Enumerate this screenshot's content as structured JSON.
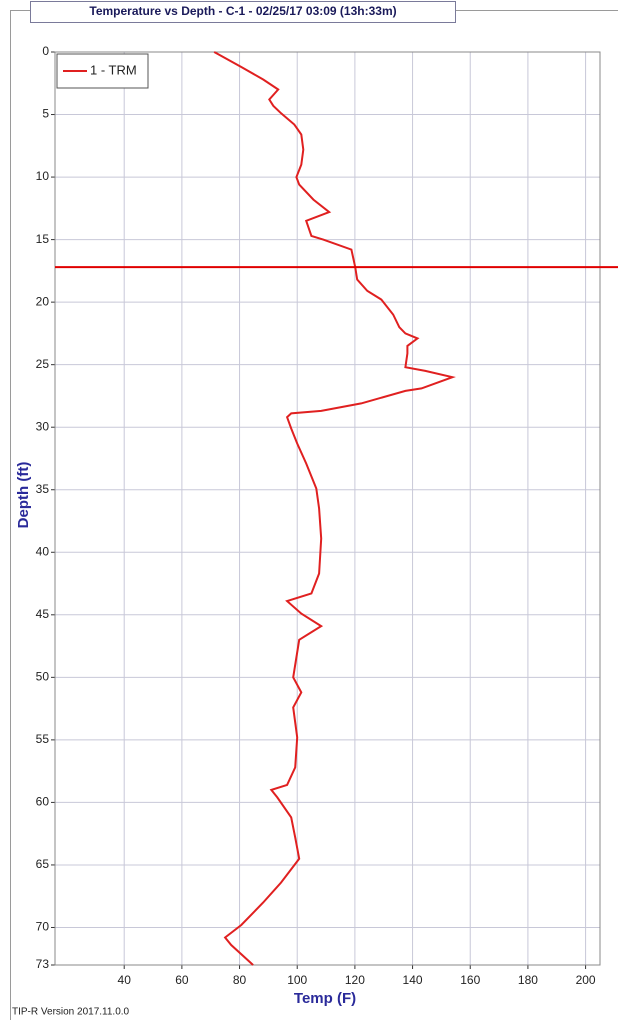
{
  "chart_data": {
    "type": "line",
    "title": "Temperature vs Depth - C-1 - 02/25/17 03:09 (13h:33m)",
    "x_label": "Temp (F)",
    "y_label": "Depth (ft)",
    "footer": "TIP-R Version 2017.11.0.0",
    "xlim": [
      16,
      205
    ],
    "xticks": [
      40,
      60,
      80,
      100,
      120,
      140,
      160,
      180,
      200
    ],
    "ylim": [
      0,
      73
    ],
    "y_inverted": true,
    "yticks": [
      0,
      5,
      10,
      15,
      20,
      25,
      30,
      35,
      40,
      45,
      50,
      55,
      60,
      65,
      70,
      73
    ],
    "grid": true,
    "legend": "top-left",
    "reference_lines": [
      {
        "value": 17.2,
        "color": "#e00000"
      }
    ],
    "series": [
      {
        "name": "1 - TRM",
        "color": "#e02020",
        "x": [
          71.2,
          80.6,
          88.2,
          93.4,
          90.3,
          91.7,
          94.4,
          99.0,
          101.4,
          102.1,
          101.4,
          99.7,
          100.7,
          105.6,
          111.1,
          103.1,
          104.9,
          109.0,
          118.8,
          120.1,
          120.8,
          124.3,
          129.2,
          133.3,
          135.4,
          137.5,
          141.7,
          138.2,
          138.2,
          137.5,
          144.4,
          153.8,
          143.1,
          137.5,
          122.2,
          108.3,
          97.9,
          96.5,
          97.9,
          100,
          103.1,
          106.6,
          107.6,
          108.3,
          107.6,
          104.9,
          96.5,
          101.4,
          108.3,
          100.7,
          100,
          98.6,
          101.4,
          98.6,
          100,
          99.3,
          96.5,
          91.0,
          93.1,
          97.9,
          99.3,
          100.7,
          94.4,
          88.2,
          80.6,
          75.0,
          77.1,
          84.7
        ],
        "values": [
          0,
          1.2,
          2.2,
          3.0,
          3.8,
          4.3,
          4.9,
          5.8,
          6.6,
          7.8,
          9.0,
          10.0,
          10.6,
          11.8,
          12.8,
          13.5,
          14.7,
          15.0,
          15.8,
          17.2,
          18.2,
          19.1,
          19.8,
          21.0,
          22.0,
          22.5,
          22.9,
          23.5,
          24.1,
          25.2,
          25.5,
          26.0,
          26.9,
          27.1,
          28.1,
          28.7,
          28.9,
          29.2,
          30.1,
          31.3,
          32.9,
          34.9,
          36.5,
          38.9,
          41.7,
          43.3,
          43.9,
          44.9,
          45.9,
          47.0,
          48.0,
          50.0,
          51.2,
          52.4,
          54.8,
          57.2,
          58.6,
          59.0,
          59.6,
          61.2,
          62.8,
          64.5,
          66.4,
          68.0,
          69.8,
          70.8,
          71.4,
          73
        ]
      }
    ]
  }
}
